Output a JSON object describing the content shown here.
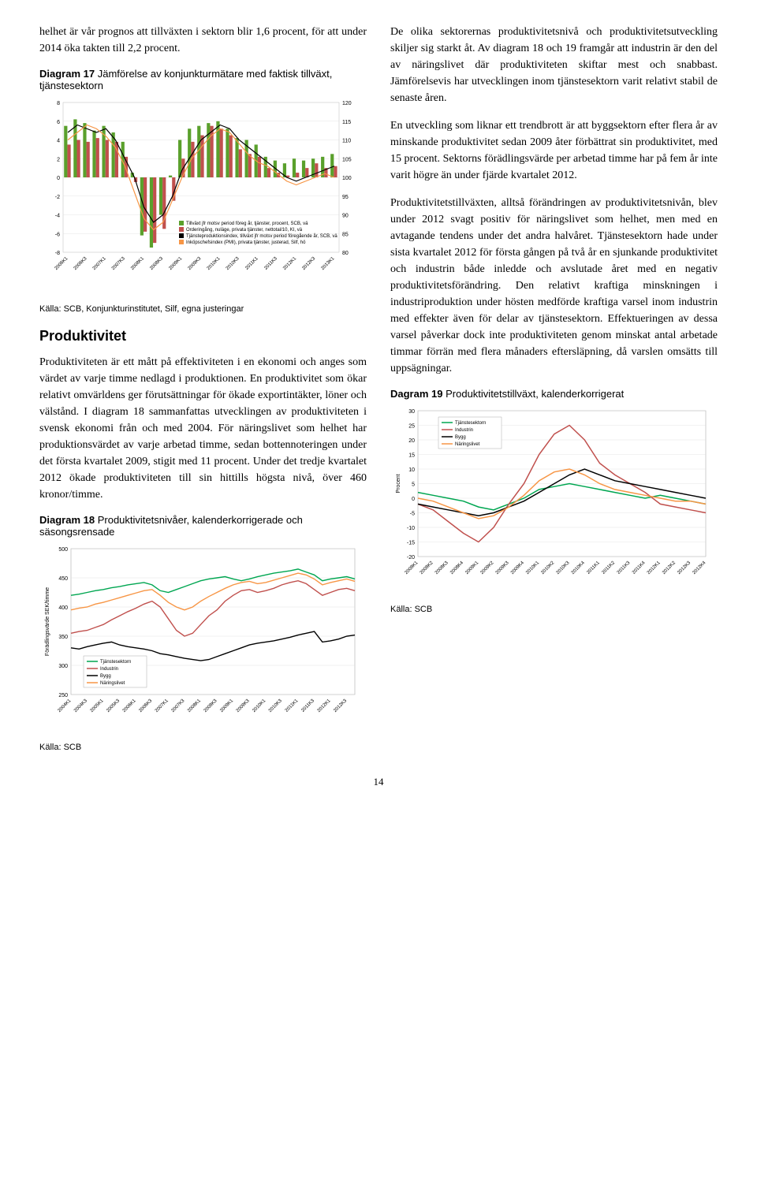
{
  "intro": {
    "p1": "helhet är vår prognos att tillväxten i sektorn blir 1,6 procent, för att under 2014 öka takten till 2,2 procent."
  },
  "diagram17": {
    "title_bold": "Diagram 17",
    "title_rest": "Jämförelse av konjunkturmätare med faktisk tillväxt, tjänstesektorn",
    "source": "Källa: SCB, Konjunkturinstitutet, Silf, egna justeringar",
    "left_min": -8,
    "left_max": 8,
    "left_step": 2,
    "right_min": 80,
    "right_max": 120,
    "right_step": 5,
    "x_labels": [
      "2006K1",
      "2006K3",
      "2007K1",
      "2007K3",
      "2008K1",
      "2008K3",
      "2009K1",
      "2009K3",
      "2010K1",
      "2010K3",
      "2011K1",
      "2011K3",
      "2012K1",
      "2012K3",
      "2013K1"
    ],
    "bars_green": [
      5.5,
      6.2,
      5.8,
      5.0,
      5.5,
      4.8,
      3.8,
      0.5,
      -6.2,
      -7.5,
      -4.0,
      0.2,
      4.0,
      5.2,
      5.5,
      5.8,
      6.0,
      5.2,
      4.2,
      4.0,
      3.5,
      2.2,
      1.8,
      1.5,
      2.0,
      1.8,
      2.0,
      2.2,
      2.5
    ],
    "bars_red": [
      3.5,
      4.0,
      3.8,
      4.2,
      4.0,
      3.8,
      2.2,
      -0.5,
      -5.8,
      -7.0,
      -5.5,
      -2.5,
      2.0,
      3.8,
      4.5,
      5.5,
      5.2,
      4.5,
      3.0,
      2.5,
      2.2,
      1.0,
      0.5,
      0.2,
      0.5,
      1.0,
      1.5,
      1.0,
      1.2
    ],
    "line_black": [
      112,
      114,
      113,
      112,
      113,
      110,
      105,
      100,
      92,
      88,
      90,
      95,
      102,
      106,
      110,
      112,
      114,
      113,
      110,
      108,
      106,
      104,
      102,
      100,
      99,
      100,
      101,
      102,
      103
    ],
    "line_orange": [
      110,
      112,
      114,
      113,
      111,
      108,
      103,
      96,
      89,
      86,
      88,
      94,
      100,
      105,
      108,
      111,
      113,
      112,
      109,
      106,
      104,
      103,
      101,
      99,
      98,
      99,
      100,
      101,
      100
    ],
    "legend": [
      "Tillväxt jfr motsv period föreg år, tjänster, procent, SCB, vä",
      "Orderingång, nuläge, privata tjänster, nettotal/10, KI, vä",
      "Tjänsteproduktionsindex, tillväxt jfr motsv period föregående år, SCB, vä",
      "Inköpschefsindex (PMI), privata tjänster, justerad, Silf, hö"
    ],
    "colors": {
      "green": "#5aa02c",
      "red": "#c0504d",
      "black": "#000000",
      "orange": "#f79646"
    }
  },
  "productivity": {
    "heading": "Produktivitet",
    "p1": "Produktiviteten är ett mått på effektiviteten i en ekonomi och anges som värdet av varje timme nedlagd i produktionen. En produktivitet som ökar relativt omvärldens ger förutsättningar för ökade exportintäkter, löner och välstånd. I diagram 18 sammanfattas utvecklingen av produktiviteten i svensk ekonomi från och med 2004. För näringslivet som helhet har produktionsvärdet av varje arbetad timme, sedan bottennoteringen under det första kvartalet 2009, stigit med 11 procent. Under det tredje kvartalet 2012 ökade produktiviteten till sin hittills högsta nivå, över 460 kronor/timme."
  },
  "diagram18": {
    "title_bold": "Diagram 18",
    "title_rest": "Produktivitetsnivåer, kalenderkorrigerade och säsongsrensade",
    "source": "Källa: SCB",
    "y_min": 250,
    "y_max": 500,
    "y_step": 50,
    "y_label": "Förädlingsvärde SEK/timme",
    "x_labels": [
      "2004K1",
      "2004K3",
      "2005K1",
      "2005K3",
      "2006K1",
      "2006K3",
      "2007K1",
      "2007K3",
      "2008K1",
      "2008K3",
      "2009K1",
      "2009K3",
      "2010K1",
      "2010K3",
      "2011K1",
      "2011K3",
      "2012K1",
      "2012K3"
    ],
    "series": {
      "tjanste": {
        "label": "Tjänstesektorn",
        "color": "#00a651",
        "data": [
          420,
          422,
          425,
          428,
          430,
          433,
          435,
          438,
          440,
          442,
          438,
          428,
          425,
          430,
          435,
          440,
          445,
          448,
          450,
          452,
          448,
          445,
          448,
          452,
          455,
          458,
          460,
          462,
          465,
          460,
          455,
          445,
          448,
          450,
          452,
          448
        ]
      },
      "industrin": {
        "label": "Industrin",
        "color": "#c0504d",
        "data": [
          355,
          358,
          360,
          365,
          370,
          378,
          385,
          392,
          398,
          405,
          410,
          400,
          380,
          360,
          350,
          355,
          370,
          385,
          395,
          410,
          420,
          428,
          430,
          425,
          428,
          432,
          438,
          442,
          445,
          440,
          430,
          420,
          425,
          430,
          432,
          428
        ]
      },
      "bygg": {
        "label": "Bygg",
        "color": "#000000",
        "data": [
          330,
          328,
          332,
          335,
          338,
          340,
          335,
          332,
          330,
          328,
          325,
          320,
          318,
          315,
          312,
          310,
          308,
          310,
          315,
          320,
          325,
          330,
          335,
          338,
          340,
          342,
          345,
          348,
          352,
          355,
          358,
          340,
          342,
          345,
          350,
          352
        ]
      },
      "naring": {
        "label": "Näringslivet",
        "color": "#f79646",
        "data": [
          395,
          398,
          400,
          405,
          408,
          412,
          416,
          420,
          424,
          428,
          430,
          420,
          408,
          400,
          395,
          400,
          410,
          418,
          425,
          432,
          438,
          442,
          444,
          440,
          442,
          446,
          450,
          454,
          458,
          455,
          448,
          438,
          442,
          445,
          448,
          444
        ]
      }
    }
  },
  "rightcol": {
    "p1": "De olika sektorernas produktivitetsnivå och produktivitetsutveckling skiljer sig starkt åt. Av diagram 18 och 19 framgår att industrin är den del av näringslivet där produktiviteten skiftar mest och snabbast. Jämförelsevis har utvecklingen inom tjänstesektorn varit relativt stabil de senaste åren.",
    "p2": "En utveckling som liknar ett trendbrott är att byggsektorn efter flera år av minskande produktivitet sedan 2009 åter förbättrat sin produktivitet, med 15 procent. Sektorns förädlingsvärde per arbetad timme har på fem år inte varit högre än under fjärde kvartalet 2012.",
    "p3": "Produktivitetstillväxten, alltså förändringen av produktivitetsnivån, blev under 2012 svagt positiv för näringslivet som helhet, men med en avtagande tendens under det andra halvåret. Tjänstesektorn hade under sista kvartalet 2012 för första gången på två år en sjunkande produktivitet och industrin både inledde och avslutade året med en negativ produktivitetsförändring. Den relativt kraftiga minskningen i industriproduktion under hösten medförde kraftiga varsel inom industrin med effekter även för delar av tjänstesektorn. Effektueringen av dessa varsel påverkar dock inte produktiviteten genom minskat antal arbetade timmar förrän med flera månaders eftersläpning, då varslen omsätts till uppsägningar."
  },
  "diagram19": {
    "title_bold": "Dagram 19",
    "title_rest": "Produktivitetstillväxt, kalenderkorrigerat",
    "source": "Källa: SCB",
    "y_min": -20,
    "y_max": 30,
    "y_step": 5,
    "y_label": "Procent",
    "x_labels": [
      "2008K1",
      "2008K2",
      "2008K3",
      "2008K4",
      "2009K1",
      "2009K2",
      "2009K3",
      "2009K4",
      "2010K1",
      "2010K2",
      "2010K3",
      "2010K4",
      "2011K1",
      "2011K2",
      "2011K3",
      "2011K4",
      "2012K1",
      "2012K2",
      "2012K3",
      "2012K4"
    ],
    "series": {
      "tjanste": {
        "label": "Tjänstesektorn",
        "color": "#00a651",
        "data": [
          2,
          1,
          0,
          -1,
          -3,
          -4,
          -2,
          0,
          3,
          4,
          5,
          4,
          3,
          2,
          1,
          0,
          1,
          0,
          -1,
          -2
        ]
      },
      "industrin": {
        "label": "Industrin",
        "color": "#c0504d",
        "data": [
          -2,
          -4,
          -8,
          -12,
          -15,
          -10,
          -2,
          5,
          15,
          22,
          25,
          20,
          12,
          8,
          5,
          2,
          -2,
          -3,
          -4,
          -5
        ]
      },
      "bygg": {
        "label": "Bygg",
        "color": "#000000",
        "data": [
          -2,
          -3,
          -4,
          -5,
          -6,
          -5,
          -3,
          -1,
          2,
          5,
          8,
          10,
          8,
          6,
          5,
          4,
          3,
          2,
          1,
          0
        ]
      },
      "naring": {
        "label": "Näringslivet",
        "color": "#f79646",
        "data": [
          0,
          -1,
          -3,
          -5,
          -7,
          -6,
          -3,
          1,
          6,
          9,
          10,
          8,
          5,
          3,
          2,
          1,
          0,
          -1,
          -1,
          -2
        ]
      }
    }
  },
  "page": "14"
}
